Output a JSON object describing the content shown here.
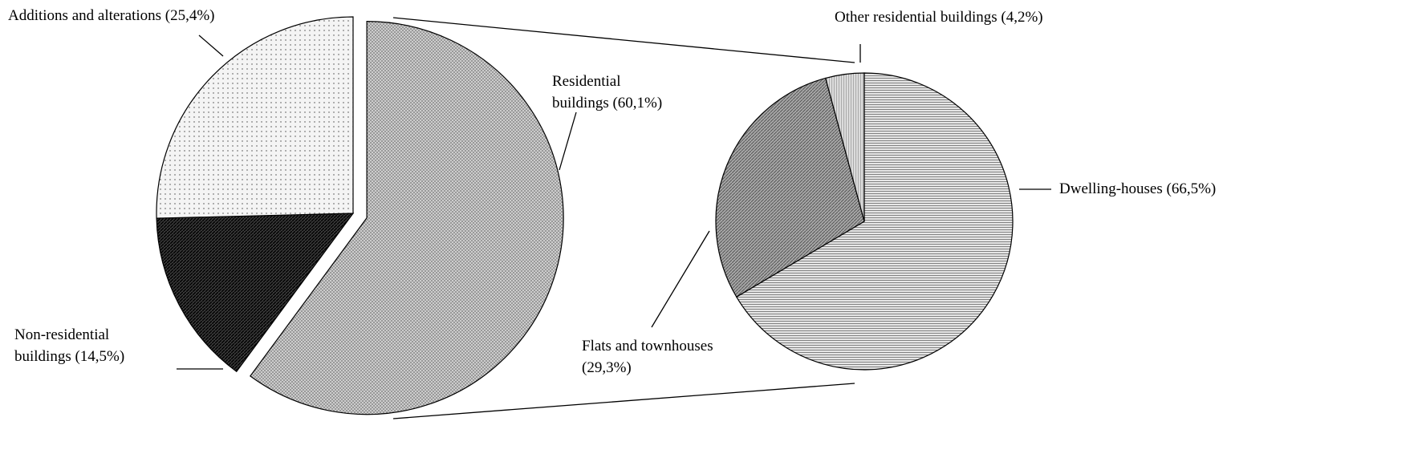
{
  "chart_data": [
    {
      "type": "pie",
      "categories": [
        "Residential buildings",
        "Non-residential buildings",
        "Additions and alterations"
      ],
      "values": [
        60.1,
        14.5,
        25.4
      ],
      "value_labels": [
        "(60,1%)",
        "(14,5%)",
        "(25,4%)"
      ],
      "colors": [
        "#d4d4d4",
        "#3a3a3a",
        "#f4f4f4"
      ]
    },
    {
      "type": "pie",
      "categories": [
        "Dwelling-houses",
        "Flats and townhouses",
        "Other residential buildings"
      ],
      "values": [
        66.5,
        29.3,
        4.2
      ],
      "value_labels": [
        "(66,5%)",
        "(29,3%)",
        "(4,2%)"
      ],
      "colors": [
        "#e6e6e6",
        "#a8a8a8",
        "#dcdcdc"
      ]
    }
  ]
}
